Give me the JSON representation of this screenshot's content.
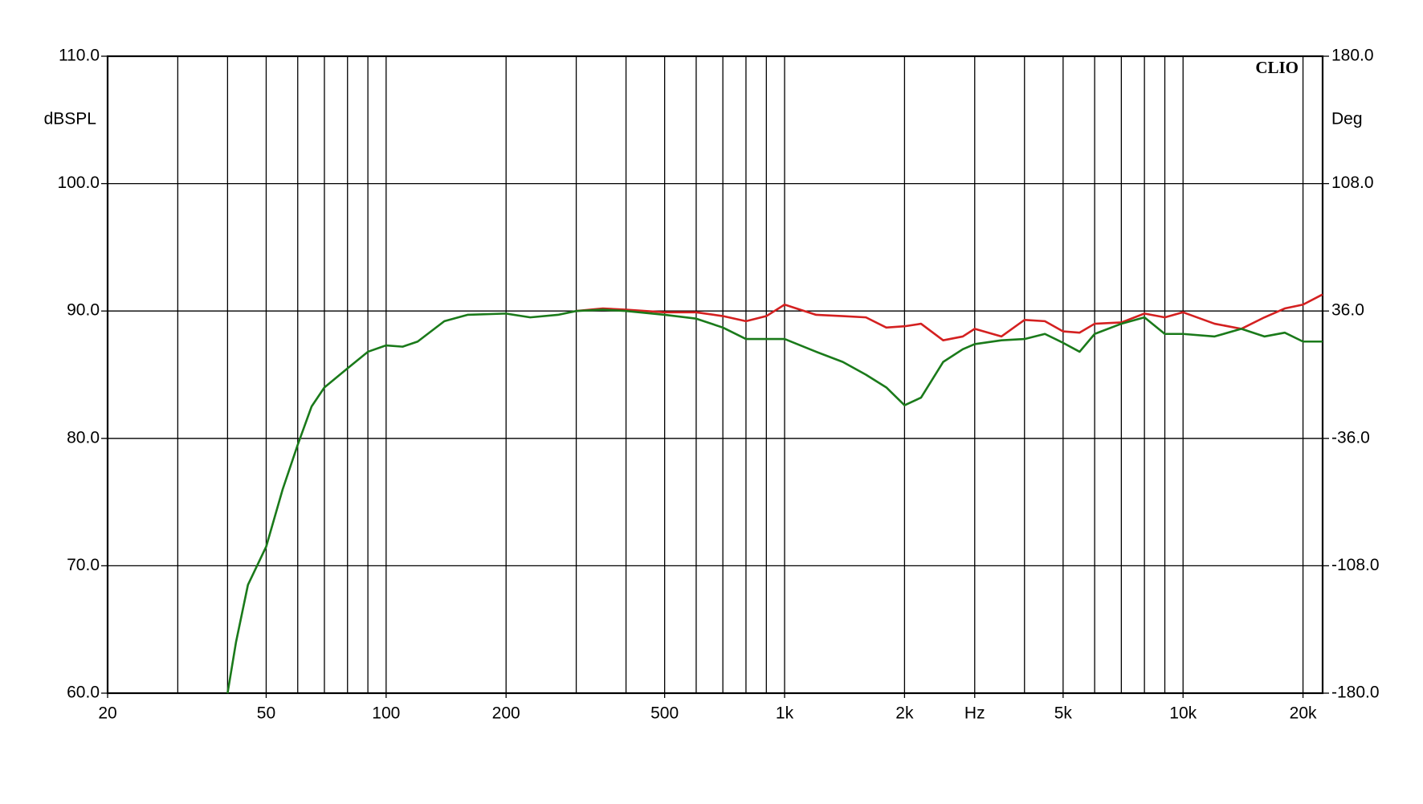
{
  "chart_data": {
    "type": "line",
    "watermark": "CLIO",
    "y_label": "dBSPL",
    "y2_label": "Deg",
    "x_log": true,
    "grid": true,
    "xlim": [
      20,
      22400
    ],
    "ylim": [
      60,
      110
    ],
    "y2lim": [
      -180,
      180
    ],
    "xticks": [
      20,
      50,
      100,
      200,
      500,
      {
        "value": 1000,
        "label": "1k"
      },
      {
        "value": 2000,
        "label": "2k"
      },
      {
        "value": 3000,
        "label": "Hz"
      },
      {
        "value": 5000,
        "label": "5k"
      },
      {
        "value": 10000,
        "label": "10k"
      },
      {
        "value": 20000,
        "label": "20k"
      }
    ],
    "minor_xticks": [
      20,
      30,
      40,
      50,
      60,
      70,
      80,
      90,
      100,
      200,
      300,
      400,
      500,
      600,
      700,
      800,
      900,
      1000,
      2000,
      3000,
      4000,
      5000,
      6000,
      7000,
      8000,
      9000,
      10000,
      20000
    ],
    "yticks": [
      {
        "value": 60,
        "label": "60.0"
      },
      {
        "value": 70,
        "label": "70.0"
      },
      {
        "value": 80,
        "label": "80.0"
      },
      {
        "value": 90,
        "label": "90.0"
      },
      {
        "value": 100,
        "label": "100.0"
      },
      {
        "value": 110,
        "label": "110.0"
      }
    ],
    "y2ticks": [
      {
        "value": -180,
        "label": "-180.0"
      },
      {
        "value": -108,
        "label": "-108.0"
      },
      {
        "value": -36,
        "label": "-36.0"
      },
      {
        "value": 36,
        "label": "36.0"
      },
      {
        "value": 108,
        "label": "108.0"
      },
      {
        "value": 180,
        "label": "180.0"
      }
    ],
    "x": [
      40,
      42,
      45,
      50,
      55,
      60,
      65,
      70,
      80,
      90,
      100,
      110,
      120,
      140,
      160,
      200,
      230,
      270,
      300,
      350,
      400,
      500,
      600,
      700,
      800,
      900,
      1000,
      1200,
      1400,
      1600,
      1800,
      2000,
      2200,
      2500,
      2800,
      3000,
      3500,
      4000,
      4500,
      5000,
      5500,
      6000,
      7000,
      8000,
      9000,
      10000,
      12000,
      14000,
      16000,
      18000,
      20000,
      22400
    ],
    "series": [
      {
        "color": "#d42020",
        "values": [
          null,
          null,
          null,
          null,
          null,
          null,
          null,
          null,
          null,
          null,
          null,
          null,
          null,
          null,
          null,
          null,
          null,
          null,
          90.0,
          90.2,
          90.1,
          89.9,
          89.9,
          89.6,
          89.2,
          89.6,
          90.5,
          89.7,
          89.6,
          89.5,
          88.7,
          88.8,
          89.0,
          87.7,
          88.0,
          88.6,
          88.0,
          89.3,
          89.2,
          88.4,
          88.3,
          89.0,
          89.1,
          89.8,
          89.5,
          89.9,
          89.0,
          88.6,
          89.5,
          90.2,
          90.5,
          91.3
        ]
      },
      {
        "color": "#1a7a1a",
        "values": [
          60,
          64,
          68.5,
          71.5,
          76,
          79.5,
          82.5,
          84,
          85.5,
          86.8,
          87.3,
          87.2,
          87.6,
          89.2,
          89.7,
          89.8,
          89.5,
          89.7,
          90.0,
          90.1,
          90.0,
          89.7,
          89.4,
          88.7,
          87.8,
          87.8,
          87.8,
          86.8,
          86.0,
          85.0,
          84.0,
          82.6,
          83.2,
          86.0,
          87.0,
          87.4,
          87.7,
          87.8,
          88.2,
          87.5,
          86.8,
          88.2,
          89.0,
          89.5,
          88.2,
          88.2,
          88.0,
          88.6,
          88.0,
          88.3,
          87.6,
          87.6
        ]
      }
    ]
  }
}
